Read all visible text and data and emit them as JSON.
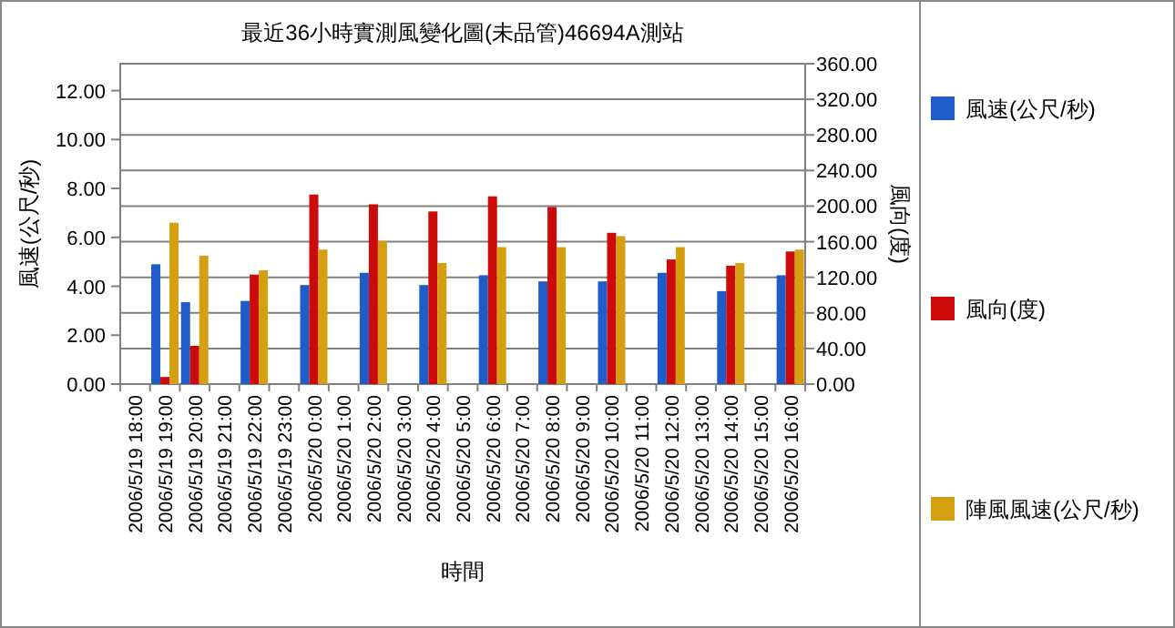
{
  "chart_data": {
    "type": "bar",
    "title": "最近36小時實測風變化圖(未品管)46694A測站",
    "xlabel": "時間",
    "ylabel": "風速(公尺/秒)",
    "y2label": "風向(度)",
    "categories": [
      "2006/5/19 18:00",
      "2006/5/19 19:00",
      "2006/5/19 20:00",
      "2006/5/19 21:00",
      "2006/5/19 22:00",
      "2006/5/19 23:00",
      "2006/5/20 0:00",
      "2006/5/20 1:00",
      "2006/5/20 2:00",
      "2006/5/20 3:00",
      "2006/5/20 4:00",
      "2006/5/20 5:00",
      "2006/5/20 6:00",
      "2006/5/20 7:00",
      "2006/5/20 8:00",
      "2006/5/20 9:00",
      "2006/5/20 10:00",
      "2006/5/20 11:00",
      "2006/5/20 12:00",
      "2006/5/20 13:00",
      "2006/5/20 14:00",
      "2006/5/20 15:00",
      "2006/5/20 16:00"
    ],
    "series": [
      {
        "name": "風速(公尺/秒)",
        "color": "#1f5cc8",
        "values": [
          null,
          4.9,
          3.35,
          null,
          3.4,
          null,
          4.05,
          null,
          4.55,
          null,
          4.05,
          null,
          4.45,
          null,
          4.2,
          null,
          4.2,
          null,
          4.55,
          null,
          3.8,
          null,
          4.45
        ]
      },
      {
        "name": "風向(度)",
        "color": "#cc0a0a",
        "axis": "y2",
        "values": [
          null,
          8,
          43,
          null,
          123,
          null,
          213,
          null,
          202,
          null,
          194,
          null,
          211,
          null,
          199,
          null,
          170,
          null,
          140,
          null,
          133,
          null,
          149
        ]
      },
      {
        "name": "陣風風速(公尺/秒)",
        "color": "#d4a012",
        "values": [
          null,
          6.6,
          5.25,
          null,
          4.65,
          null,
          5.5,
          null,
          5.85,
          null,
          4.95,
          null,
          5.6,
          null,
          5.6,
          null,
          6.05,
          null,
          5.6,
          null,
          4.95,
          null,
          5.5
        ]
      }
    ],
    "ylim": [
      0,
      13.1
    ],
    "yticks": [
      {
        "value": 0,
        "label": "0.00"
      },
      {
        "value": 2,
        "label": "2.00"
      },
      {
        "value": 4,
        "label": "4.00"
      },
      {
        "value": 6,
        "label": "6.00"
      },
      {
        "value": 8,
        "label": "8.00"
      },
      {
        "value": 10,
        "label": "10.00"
      },
      {
        "value": 12,
        "label": "12.00"
      }
    ],
    "y2lim": [
      0,
      360
    ],
    "y2ticks": [
      {
        "value": 0,
        "label": "0.00"
      },
      {
        "value": 40,
        "label": "40.00"
      },
      {
        "value": 80,
        "label": "80.00"
      },
      {
        "value": 120,
        "label": "120.00"
      },
      {
        "value": 160,
        "label": "160.00"
      },
      {
        "value": 200,
        "label": "200.00"
      },
      {
        "value": 240,
        "label": "240.00"
      },
      {
        "value": 280,
        "label": "280.00"
      },
      {
        "value": 320,
        "label": "320.00"
      },
      {
        "value": 360,
        "label": "360.00"
      }
    ],
    "grid": "y2",
    "legend": "right"
  }
}
